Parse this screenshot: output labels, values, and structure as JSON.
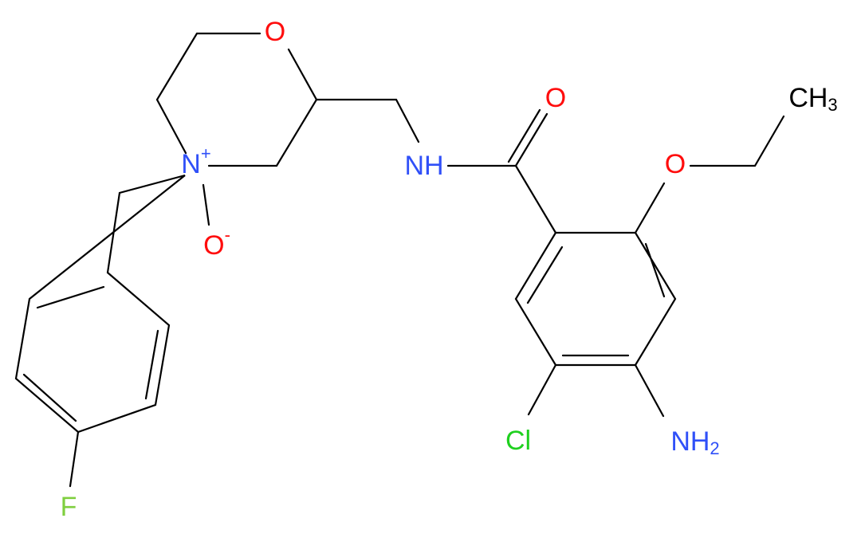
{
  "atoms": {
    "ring_o": "O",
    "n_oxide": {
      "symbol": "N",
      "charge": "+"
    },
    "o_minus": {
      "symbol": "O",
      "charge": "-"
    },
    "amide_nh": "NH",
    "carbonyl_o": "O",
    "ether_o": "O",
    "methyl": {
      "symbol": "CH",
      "subscript": "3"
    },
    "chlorine": "Cl",
    "amine": {
      "symbol": "NH",
      "subscript": "2"
    },
    "fluorine": "F"
  }
}
